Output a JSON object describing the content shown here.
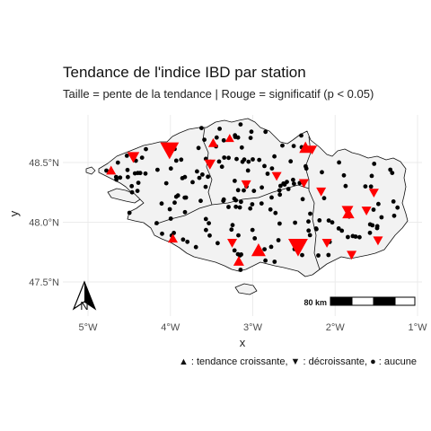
{
  "map": {
    "title": "Tendance de l'indice IBD par station",
    "subtitle": "Taille = pente de la tendance | Rouge = significatif (p < 0.05)",
    "x_axis_title": "x",
    "y_axis_title": "y",
    "caption": "▲ : tendance croissante, ▼ : décroissante, ● : aucune",
    "north_arrow_label": "N",
    "scale_bar_label": "80 km",
    "x_ticks": [
      {
        "lon": -5,
        "label": "5°W"
      },
      {
        "lon": -4,
        "label": "4°W"
      },
      {
        "lon": -3,
        "label": "3°W"
      },
      {
        "lon": -2,
        "label": "2°W"
      },
      {
        "lon": -1,
        "label": "1°W"
      }
    ],
    "y_ticks": [
      {
        "lat": 48.5,
        "label": "48.5°N"
      },
      {
        "lat": 48.0,
        "label": "48.0°N"
      },
      {
        "lat": 47.5,
        "label": "47.5°N"
      }
    ],
    "colors": {
      "significant": "#ff0000",
      "not_significant": "#000000",
      "region_fill": "#f2f2f2",
      "border": "#111111"
    },
    "legend_symbols": {
      "increasing": "triangle-up",
      "decreasing": "triangle-down",
      "none": "dot"
    }
  },
  "chart_data": {
    "type": "scatter",
    "title": "Tendance de l'indice IBD par station",
    "subtitle": "Taille = pente de la tendance | Rouge = significatif (p < 0.05)",
    "xlabel": "x",
    "ylabel": "y",
    "xlim": [
      -5.08,
      -0.93
    ],
    "ylim": [
      47.3,
      48.78
    ],
    "grid": true,
    "significant_stations": [
      {
        "lon": -4.01,
        "lat": 48.61,
        "trend": "decreasing",
        "slope": 3
      },
      {
        "lon": -4.72,
        "lat": 48.43,
        "trend": "increasing",
        "slope": 1
      },
      {
        "lon": -4.45,
        "lat": 48.55,
        "trend": "decreasing",
        "slope": 1.5
      },
      {
        "lon": -3.52,
        "lat": 48.49,
        "trend": "decreasing",
        "slope": 1.3
      },
      {
        "lon": -3.48,
        "lat": 48.66,
        "trend": "increasing",
        "slope": 1
      },
      {
        "lon": -3.28,
        "lat": 48.7,
        "trend": "increasing",
        "slope": 0.8
      },
      {
        "lon": -2.36,
        "lat": 48.62,
        "trend": "increasing",
        "slope": 1.6
      },
      {
        "lon": -2.28,
        "lat": 48.61,
        "trend": "decreasing",
        "slope": 1
      },
      {
        "lon": -2.71,
        "lat": 48.39,
        "trend": "decreasing",
        "slope": 1
      },
      {
        "lon": -2.38,
        "lat": 48.33,
        "trend": "decreasing",
        "slope": 1
      },
      {
        "lon": -2.17,
        "lat": 48.26,
        "trend": "decreasing",
        "slope": 1
      },
      {
        "lon": -1.85,
        "lat": 48.1,
        "trend": "decreasing",
        "slope": 1.4
      },
      {
        "lon": -1.84,
        "lat": 48.07,
        "trend": "increasing",
        "slope": 1.5
      },
      {
        "lon": -1.62,
        "lat": 48.1,
        "trend": "decreasing",
        "slope": 1
      },
      {
        "lon": -1.53,
        "lat": 48.25,
        "trend": "decreasing",
        "slope": 1
      },
      {
        "lon": -3.08,
        "lat": 48.32,
        "trend": "decreasing",
        "slope": 1
      },
      {
        "lon": -2.45,
        "lat": 47.8,
        "trend": "decreasing",
        "slope": 3.2
      },
      {
        "lon": -2.93,
        "lat": 47.76,
        "trend": "increasing",
        "slope": 2
      },
      {
        "lon": -3.17,
        "lat": 47.67,
        "trend": "increasing",
        "slope": 1.2
      },
      {
        "lon": -3.97,
        "lat": 47.86,
        "trend": "increasing",
        "slope": 1
      },
      {
        "lon": -3.25,
        "lat": 47.83,
        "trend": "decreasing",
        "slope": 1
      },
      {
        "lon": -2.1,
        "lat": 47.83,
        "trend": "decreasing",
        "slope": 1
      },
      {
        "lon": -1.48,
        "lat": 47.85,
        "trend": "decreasing",
        "slope": 1
      },
      {
        "lon": -1.8,
        "lat": 47.73,
        "trend": "decreasing",
        "slope": 1
      }
    ]
  }
}
